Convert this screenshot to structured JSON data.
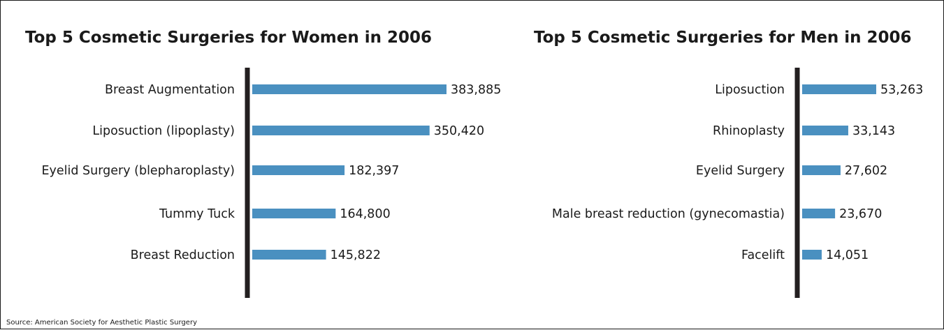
{
  "source": "Source: American Society for Aesthetic Plastic Surgery",
  "colors": {
    "bar": "#4a90c0",
    "axis": "#231f20",
    "text": "#1a1a1a"
  },
  "chart_data": [
    {
      "type": "bar",
      "orientation": "horizontal",
      "title": "Top 5 Cosmetic Surgeries for Women in 2006",
      "categories": [
        "Breast Augmentation",
        "Liposuction (lipoplasty)",
        "Eyelid Surgery (blepharoplasty)",
        "Tummy Tuck",
        "Breast Reduction"
      ],
      "values": [
        383885,
        350420,
        182397,
        164800,
        145822
      ],
      "labels": [
        "383,885",
        "350,420",
        "182,397",
        "164,800",
        "145,822"
      ],
      "xlim": [
        0,
        383885
      ],
      "grid": false,
      "legend": "none"
    },
    {
      "type": "bar",
      "orientation": "horizontal",
      "title": "Top 5 Cosmetic Surgeries for Men in 2006",
      "categories": [
        "Liposuction",
        "Rhinoplasty",
        "Eyelid Surgery",
        "Male breast reduction (gynecomastia)",
        "Facelift"
      ],
      "values": [
        53263,
        33143,
        27602,
        23670,
        14051
      ],
      "labels": [
        "53,263",
        "33,143",
        "27,602",
        "23,670",
        "14,051"
      ],
      "xlim": [
        0,
        53263
      ],
      "grid": false,
      "legend": "none"
    }
  ]
}
